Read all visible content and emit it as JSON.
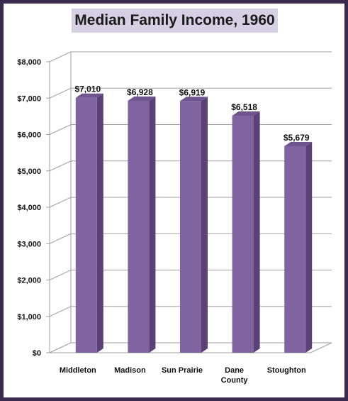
{
  "chart_data": {
    "type": "bar",
    "title": "Median Family Income, 1960",
    "xlabel": "",
    "ylabel": "",
    "categories": [
      [
        "Middleton"
      ],
      [
        "Madison"
      ],
      [
        "Sun Prairie"
      ],
      [
        "Dane",
        "County"
      ],
      [
        "Stoughton"
      ]
    ],
    "values": [
      7010,
      6928,
      6919,
      6518,
      5679
    ],
    "data_labels": [
      "$7,010",
      "$6,928",
      "$6,919",
      "$6,518",
      "$5,679"
    ],
    "yticks": [
      "$0",
      "$1,000",
      "$2,000",
      "$3,000",
      "$4,000",
      "$5,000",
      "$6,000",
      "$7,000",
      "$8,000"
    ],
    "ylim": [
      0,
      8000
    ],
    "grid": true,
    "legend": "none",
    "bar_style": "3d",
    "colors": {
      "bar_front": "#8064a2",
      "bar_side": "#5a4279",
      "bar_top": "#6e5590",
      "title_background": "#d6d0e4",
      "frame": "#3a2a4e"
    }
  }
}
